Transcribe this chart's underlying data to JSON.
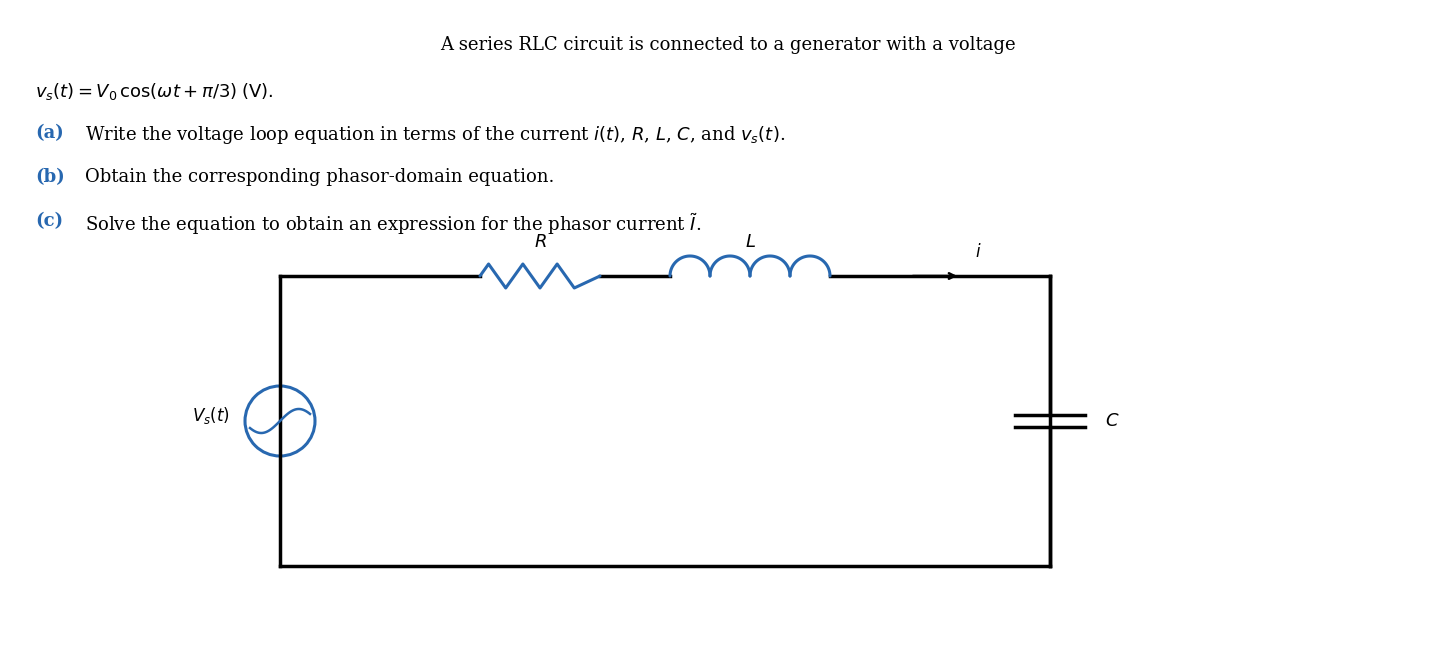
{
  "bg_color": "#ffffff",
  "text_color": "#1a1a1a",
  "blue_color": "#2868b0",
  "circuit_color": "#000000",
  "component_color": "#2868b0",
  "title_line1": "A series RLC circuit is connected to a generator with a voltage",
  "title_line2": "v_s(t) = V_0 cos(ωt + π/3) (V).",
  "item_a": "(a)  Write the voltage loop equation in terms of the current ",
  "item_a2": "i(t), R, L, C, and v_s(t).",
  "item_b": "(b)  Obtain the corresponding phasor-domain equation.",
  "item_c": "(c)  Solve the equation to obtain an expression for the phasor current ",
  "figsize": [
    14.56,
    6.66
  ],
  "dpi": 100
}
